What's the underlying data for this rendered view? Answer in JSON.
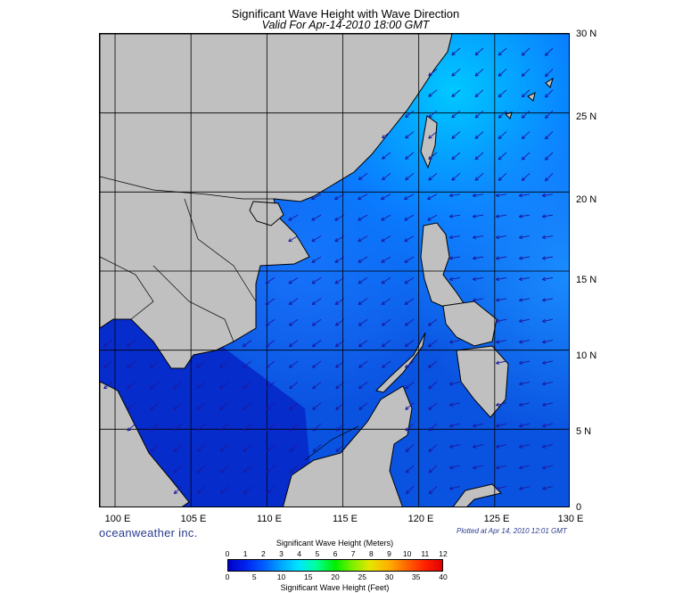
{
  "header": {
    "title": "Significant Wave Height with Wave Direction",
    "subtitle": "Valid For Apr-14-2010 18:00 GMT"
  },
  "map": {
    "lon_labels": [
      "100 E",
      "105 E",
      "110 E",
      "115 E",
      "120 E",
      "125 E",
      "130 E"
    ],
    "lat_labels": [
      "30 N",
      "25 N",
      "20 N",
      "15 N",
      "10 N",
      "5 N",
      "0"
    ],
    "lon_range": [
      99,
      130
    ],
    "lat_range": [
      0,
      30
    ],
    "land_color": "#c0c0c0",
    "arrow_color": "#1a1aa0"
  },
  "footer": {
    "brand": "oceanweather inc.",
    "plotted": "Plotted at Apr 14, 2010 12:01 GMT"
  },
  "colorbar": {
    "title_meters": "Significant Wave Height (Meters)",
    "title_feet": "Significant Wave Height (Feet)",
    "meters_ticks": [
      "0",
      "1",
      "2",
      "3",
      "4",
      "5",
      "6",
      "7",
      "8",
      "9",
      "10",
      "11",
      "12"
    ],
    "feet_ticks": [
      "0",
      "5",
      "10",
      "15",
      "20",
      "25",
      "30",
      "35",
      "40"
    ]
  }
}
